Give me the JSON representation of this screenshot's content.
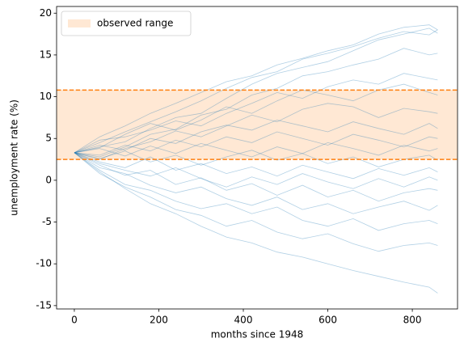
{
  "chart_data": {
    "type": "line",
    "x_label": "months since 1948",
    "y_label": "unemployment rate (%)",
    "x": [
      0,
      60,
      120,
      180,
      240,
      300,
      360,
      420,
      480,
      540,
      600,
      660,
      720,
      780,
      840,
      860
    ],
    "color": "#1f77b4",
    "series": [
      {
        "values": [
          3.3,
          4.5,
          5.8,
          7.0,
          8.2,
          9.5,
          11.0,
          12.3,
          13.0,
          14.5,
          15.2,
          16.0,
          17.0,
          17.8,
          17.4,
          18.0
        ]
      },
      {
        "values": [
          3.3,
          4.0,
          4.6,
          6.2,
          7.5,
          8.0,
          9.8,
          11.5,
          12.8,
          13.5,
          14.2,
          15.5,
          16.8,
          17.5,
          18.2,
          17.6
        ]
      },
      {
        "values": [
          3.3,
          2.8,
          4.0,
          5.5,
          6.1,
          7.8,
          8.5,
          10.2,
          11.0,
          12.5,
          13.0,
          13.8,
          14.5,
          15.8,
          15.0,
          15.2
        ]
      },
      {
        "values": [
          3.3,
          4.8,
          5.2,
          6.0,
          7.1,
          6.5,
          8.0,
          9.2,
          10.5,
          9.8,
          11.2,
          12.0,
          11.5,
          12.8,
          12.2,
          12.0
        ]
      },
      {
        "values": [
          3.3,
          3.9,
          5.5,
          6.8,
          6.0,
          7.2,
          8.8,
          8.0,
          9.5,
          10.8,
          10.2,
          9.5,
          10.8,
          11.5,
          10.5,
          10.2
        ]
      },
      {
        "values": [
          3.3,
          2.5,
          3.8,
          4.6,
          5.9,
          5.2,
          6.5,
          7.8,
          7.0,
          8.5,
          9.2,
          8.8,
          7.5,
          8.6,
          8.2,
          8.0
        ]
      },
      {
        "values": [
          3.3,
          4.2,
          3.6,
          5.0,
          4.4,
          5.8,
          6.6,
          6.0,
          7.2,
          6.5,
          5.8,
          7.0,
          6.2,
          5.5,
          6.8,
          6.2
        ]
      },
      {
        "values": [
          3.3,
          3.0,
          4.2,
          3.5,
          4.8,
          4.0,
          5.2,
          4.5,
          5.8,
          5.0,
          4.2,
          5.5,
          4.8,
          4.0,
          5.2,
          5.0
        ]
      },
      {
        "values": [
          3.3,
          3.8,
          2.9,
          4.1,
          3.2,
          4.4,
          3.6,
          2.8,
          4.0,
          3.2,
          4.5,
          3.8,
          3.0,
          4.2,
          3.5,
          3.8
        ]
      },
      {
        "values": [
          3.3,
          2.6,
          3.5,
          2.2,
          3.0,
          1.8,
          2.8,
          3.6,
          2.4,
          3.2,
          2.0,
          2.8,
          1.6,
          2.5,
          3.0,
          2.4
        ]
      },
      {
        "values": [
          3.3,
          2.2,
          1.5,
          2.8,
          1.2,
          2.0,
          0.8,
          1.6,
          0.5,
          1.8,
          1.0,
          0.2,
          1.4,
          0.6,
          1.5,
          1.0
        ]
      },
      {
        "values": [
          3.3,
          2.0,
          1.2,
          0.5,
          1.5,
          0.2,
          -0.8,
          0.4,
          -0.5,
          0.8,
          -0.2,
          -1.0,
          0.2,
          -0.8,
          0.4,
          0.0
        ]
      },
      {
        "values": [
          3.3,
          1.8,
          0.6,
          1.2,
          -0.5,
          0.3,
          -1.2,
          -0.4,
          -1.8,
          -0.6,
          -2.0,
          -1.2,
          -2.5,
          -1.5,
          -1.0,
          -1.2
        ]
      },
      {
        "values": [
          3.3,
          1.5,
          0.8,
          -0.6,
          -1.5,
          -0.8,
          -2.2,
          -3.0,
          -2.0,
          -3.5,
          -2.8,
          -4.0,
          -3.2,
          -2.5,
          -3.6,
          -3.0
        ]
      },
      {
        "values": [
          3.3,
          1.2,
          -0.5,
          -1.2,
          -2.5,
          -3.4,
          -2.8,
          -4.0,
          -3.2,
          -4.8,
          -5.5,
          -4.6,
          -6.0,
          -5.2,
          -4.8,
          -5.2
        ]
      },
      {
        "values": [
          3.3,
          0.8,
          -0.8,
          -2.0,
          -3.5,
          -4.2,
          -5.5,
          -4.8,
          -6.2,
          -7.0,
          -6.4,
          -7.6,
          -8.5,
          -7.8,
          -7.5,
          -7.8
        ]
      },
      {
        "values": [
          3.3,
          1.0,
          -1.0,
          -2.8,
          -4.0,
          -5.5,
          -6.8,
          -7.5,
          -8.6,
          -9.2,
          -10.0,
          -10.8,
          -11.5,
          -12.2,
          -12.8,
          -13.5
        ]
      },
      {
        "values": [
          3.3,
          5.2,
          6.5,
          8.0,
          9.2,
          10.5,
          11.8,
          12.5,
          13.8,
          14.6,
          15.5,
          16.2,
          17.5,
          18.3,
          18.6,
          18.0
        ]
      }
    ],
    "band": {
      "label": "observed range",
      "range": [
        2.5,
        10.8
      ],
      "color": "#ff7f0e"
    },
    "xlim": [
      -42,
      907
    ],
    "xticks": [
      0,
      200,
      400,
      600,
      800
    ],
    "ylim": [
      -15.4,
      20.8
    ],
    "yticks": [
      -15,
      -10,
      -5,
      0,
      5,
      10,
      15,
      20
    ],
    "legend": "upper left"
  }
}
